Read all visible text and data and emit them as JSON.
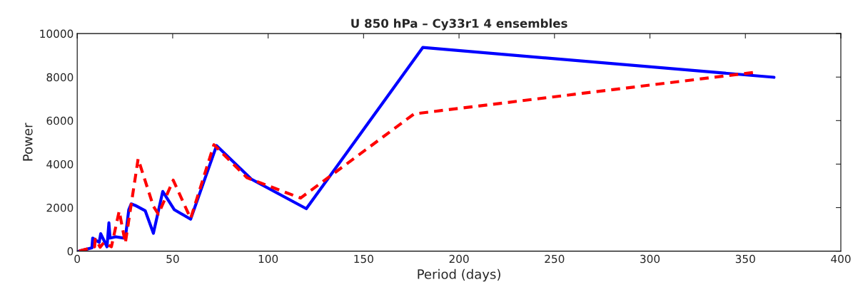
{
  "chart_data": {
    "type": "line",
    "title": "U 850 hPa – Cy33r1 4 ensembles",
    "xlabel": "Period (days)",
    "ylabel": "Power",
    "series": [
      {
        "color": "#0000ff",
        "line_style": "solid",
        "x": [
          1,
          7.7,
          8.1,
          11.5,
          12.3,
          15.6,
          16.6,
          17.2,
          20.2,
          25.2,
          27,
          28.3,
          30.4,
          35.6,
          39.9,
          44.8,
          50.9,
          59.4,
          73,
          91.2,
          120,
          181,
          365
        ],
        "values": [
          0,
          150,
          600,
          400,
          800,
          200,
          1300,
          600,
          660,
          590,
          1900,
          2170,
          2100,
          1860,
          820,
          2740,
          1900,
          1470,
          4850,
          3310,
          1950,
          9360,
          7990
        ]
      },
      {
        "color": "#ff0000",
        "line_style": "dashed",
        "x": [
          1,
          9.1,
          9.5,
          12,
          14,
          17.9,
          22,
          25.2,
          31.9,
          39.9,
          42.5,
          50.3,
          59.4,
          71.6,
          89,
          117,
          176.5,
          354
        ],
        "values": [
          0,
          200,
          550,
          180,
          400,
          200,
          1840,
          370,
          4240,
          2060,
          1700,
          3260,
          1500,
          4890,
          3370,
          2440,
          6310,
          8210
        ]
      }
    ],
    "xlim": [
      0,
      400
    ],
    "xticks": [
      0,
      50,
      100,
      150,
      200,
      250,
      300,
      350,
      400
    ],
    "ylim": [
      0,
      10000
    ],
    "yticks": [
      0,
      2000,
      4000,
      6000,
      8000,
      10000
    ],
    "grid": false,
    "legend": false
  }
}
